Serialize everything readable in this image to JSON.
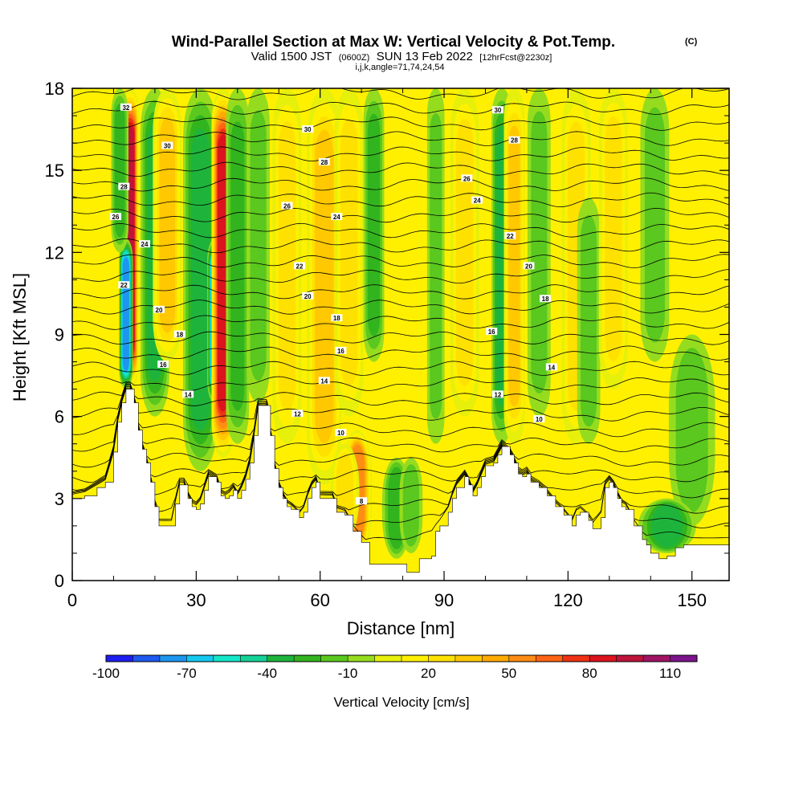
{
  "chart_data": {
    "type": "heatmap",
    "title": "Wind-Parallel Section at Max W: Vertical Velocity & Pot.Temp.",
    "title_mark": "(C)",
    "subtitle_parts": [
      "Valid 1500 JST",
      "(0600Z)",
      "SUN 13 Feb 2022",
      "[12hrFcst@2230z]"
    ],
    "subtitle2": "i,j,k,angle=71,74,24,54",
    "xlabel": "Distance [nm]",
    "ylabel": "Height [Kft MSL]",
    "xlim": [
      0,
      159
    ],
    "ylim": [
      0,
      18
    ],
    "x_ticks": [
      "0",
      "30",
      "60",
      "90",
      "120",
      "150"
    ],
    "y_ticks": [
      "0",
      "3",
      "6",
      "9",
      "12",
      "15",
      "18"
    ],
    "x_tick_values": [
      0,
      30,
      60,
      90,
      120,
      150
    ],
    "y_tick_values": [
      0,
      3,
      6,
      9,
      12,
      15,
      18
    ],
    "colorbar": {
      "title": "Vertical Velocity [cm/s]",
      "tick_labels": [
        "-100",
        "-70",
        "-40",
        "-10",
        "20",
        "50",
        "80",
        "110"
      ],
      "levels": [
        -100,
        -90,
        -80,
        -70,
        -60,
        -50,
        -40,
        -30,
        -20,
        -10,
        0,
        10,
        20,
        30,
        40,
        50,
        60,
        70,
        80,
        90,
        100,
        110
      ],
      "colors": [
        "#1e1ef0",
        "#1e5af0",
        "#1e96f0",
        "#14c8f0",
        "#14e6c8",
        "#14d296",
        "#1eb43c",
        "#32b41e",
        "#5ac81e",
        "#96dc1e",
        "#e6f00a",
        "#fff000",
        "#ffe100",
        "#ffc800",
        "#ffaa00",
        "#ff8c14",
        "#ff6414",
        "#f03214",
        "#dc141e",
        "#be143c",
        "#a01464",
        "#7d148c"
      ]
    },
    "background_color": "#fff000",
    "terrain_color": "#ffffff",
    "terrain": [
      [
        0,
        3.0
      ],
      [
        3,
        3.1
      ],
      [
        6,
        3.4
      ],
      [
        8,
        3.6
      ],
      [
        10,
        4.7
      ],
      [
        11,
        5.8
      ],
      [
        12,
        6.5
      ],
      [
        13,
        7.0
      ],
      [
        14,
        7.0
      ],
      [
        15,
        6.5
      ],
      [
        16,
        5.5
      ],
      [
        17,
        4.8
      ],
      [
        18,
        4.3
      ],
      [
        19,
        3.6
      ],
      [
        20,
        2.7
      ],
      [
        21,
        2.0
      ],
      [
        24,
        2.0
      ],
      [
        25,
        2.8
      ],
      [
        26,
        3.5
      ],
      [
        27,
        3.5
      ],
      [
        28,
        3.0
      ],
      [
        29,
        2.7
      ],
      [
        30,
        2.6
      ],
      [
        31,
        2.8
      ],
      [
        32,
        3.3
      ],
      [
        33,
        3.8
      ],
      [
        35,
        3.6
      ],
      [
        36,
        3.1
      ],
      [
        37,
        3.0
      ],
      [
        38,
        3.1
      ],
      [
        39,
        3.3
      ],
      [
        40,
        3.0
      ],
      [
        41,
        3.3
      ],
      [
        42,
        3.7
      ],
      [
        43,
        4.3
      ],
      [
        44,
        5.3
      ],
      [
        45,
        6.4
      ],
      [
        47,
        6.4
      ],
      [
        48,
        5.3
      ],
      [
        49,
        4.1
      ],
      [
        50,
        3.4
      ],
      [
        51,
        3.0
      ],
      [
        52,
        2.7
      ],
      [
        53,
        2.6
      ],
      [
        55,
        2.3
      ],
      [
        56,
        2.5
      ],
      [
        57,
        3.0
      ],
      [
        58,
        3.4
      ],
      [
        59,
        3.6
      ],
      [
        60,
        3.0
      ],
      [
        63,
        3.0
      ],
      [
        64,
        2.5
      ],
      [
        66,
        2.4
      ],
      [
        68,
        1.8
      ],
      [
        70,
        1.4
      ],
      [
        72,
        0.6
      ],
      [
        80,
        0.6
      ],
      [
        81,
        0.3
      ],
      [
        83,
        0.3
      ],
      [
        84,
        0.8
      ],
      [
        87,
        0.9
      ],
      [
        88,
        1.8
      ],
      [
        89,
        2.0
      ],
      [
        91,
        2.5
      ],
      [
        92,
        3.0
      ],
      [
        93,
        3.4
      ],
      [
        95,
        3.8
      ],
      [
        96,
        3.5
      ],
      [
        97,
        3.1
      ],
      [
        98,
        3.4
      ],
      [
        99,
        3.8
      ],
      [
        100,
        4.2
      ],
      [
        102,
        4.3
      ],
      [
        103,
        4.6
      ],
      [
        104,
        4.9
      ],
      [
        106,
        4.6
      ],
      [
        107,
        4.3
      ],
      [
        108,
        3.9
      ],
      [
        109,
        3.8
      ],
      [
        110,
        3.9
      ],
      [
        111,
        3.6
      ],
      [
        113,
        3.4
      ],
      [
        115,
        3.1
      ],
      [
        117,
        2.7
      ],
      [
        119,
        2.4
      ],
      [
        121,
        2.0
      ],
      [
        122,
        2.4
      ],
      [
        123,
        2.5
      ],
      [
        125,
        2.2
      ],
      [
        126,
        1.9
      ],
      [
        128,
        2.3
      ],
      [
        129,
        3.4
      ],
      [
        130,
        3.6
      ],
      [
        131,
        3.4
      ],
      [
        132,
        3.0
      ],
      [
        133,
        2.7
      ],
      [
        134,
        2.6
      ],
      [
        136,
        2.0
      ],
      [
        138,
        1.5
      ],
      [
        139,
        1.3
      ],
      [
        140,
        1.0
      ],
      [
        142,
        0.8
      ],
      [
        144,
        0.9
      ],
      [
        146,
        1.2
      ],
      [
        148,
        1.3
      ],
      [
        159,
        1.3
      ]
    ],
    "velocity_features": [
      {
        "x": 14,
        "width": 1.5,
        "y_min": 7,
        "y_max": 18,
        "w": 100
      },
      {
        "x": 13,
        "width": 1.2,
        "y_min": 7,
        "y_max": 12.5,
        "w": -75
      },
      {
        "x": 11.5,
        "width": 1.5,
        "y_min": 12,
        "y_max": 18,
        "w": -30
      },
      {
        "x": 20,
        "width": 2.5,
        "y_min": 6,
        "y_max": 18,
        "w": -35
      },
      {
        "x": 23,
        "width": 2.5,
        "y_min": 8,
        "y_max": 18,
        "w": 35
      },
      {
        "x": 31,
        "width": 3.0,
        "y_min": 4,
        "y_max": 18,
        "w": -40
      },
      {
        "x": 34.5,
        "width": 1.3,
        "y_min": 6.5,
        "y_max": 12.5,
        "w": -75
      },
      {
        "x": 36.5,
        "width": 2.0,
        "y_min": 4.5,
        "y_max": 18,
        "w": 85
      },
      {
        "x": 40,
        "width": 2.0,
        "y_min": 5,
        "y_max": 18,
        "w": -25
      },
      {
        "x": 45,
        "width": 2.0,
        "y_min": 6.5,
        "y_max": 18,
        "w": -20
      },
      {
        "x": 52,
        "width": 2.5,
        "y_min": 5,
        "y_max": 18,
        "w": 30
      },
      {
        "x": 61,
        "width": 3.0,
        "y_min": 3.5,
        "y_max": 18,
        "w": 35
      },
      {
        "x": 67,
        "width": 2.5,
        "y_min": 6,
        "y_max": 18,
        "w": 25
      },
      {
        "x": 69,
        "width": 2.5,
        "y_min": 1,
        "y_max": 5.5,
        "w": 60
      },
      {
        "x": 66,
        "width": 2.5,
        "y_min": 1.5,
        "y_max": 5,
        "w": 30
      },
      {
        "x": 73,
        "width": 1.8,
        "y_min": 8,
        "y_max": 18,
        "w": -25
      },
      {
        "x": 78.5,
        "width": 2.5,
        "y_min": 0.8,
        "y_max": 4.5,
        "w": -30
      },
      {
        "x": 82,
        "width": 2.0,
        "y_min": 1,
        "y_max": 4.5,
        "w": -20
      },
      {
        "x": 88,
        "width": 1.5,
        "y_min": 5,
        "y_max": 18,
        "w": -15
      },
      {
        "x": 95,
        "width": 2.5,
        "y_min": 6,
        "y_max": 18,
        "w": 25
      },
      {
        "x": 104,
        "width": 1.8,
        "y_min": 5,
        "y_max": 18,
        "w": -40
      },
      {
        "x": 107,
        "width": 1.8,
        "y_min": 5,
        "y_max": 18,
        "w": 40
      },
      {
        "x": 113,
        "width": 2.0,
        "y_min": 6,
        "y_max": 18,
        "w": -15
      },
      {
        "x": 122,
        "width": 2.5,
        "y_min": 5,
        "y_max": 18,
        "w": 30
      },
      {
        "x": 125,
        "width": 2.0,
        "y_min": 5,
        "y_max": 14,
        "w": -20
      },
      {
        "x": 131,
        "width": 2.5,
        "y_min": 7,
        "y_max": 18,
        "w": 25
      },
      {
        "x": 141,
        "width": 2.5,
        "y_min": 8,
        "y_max": 18,
        "w": -20
      },
      {
        "x": 150,
        "width": 4.0,
        "y_min": 2,
        "y_max": 9,
        "w": -20
      },
      {
        "x": 144,
        "width": 5.0,
        "y_min": 1,
        "y_max": 3,
        "w": -35
      }
    ],
    "pot_temp_contour_levels": [
      4,
      6,
      8,
      10,
      12,
      14,
      16,
      18,
      20,
      22,
      24,
      26,
      28,
      30,
      32
    ],
    "pot_temp_labels": [
      {
        "text": "32",
        "x": 13,
        "y": 17.3
      },
      {
        "text": "30",
        "x": 23,
        "y": 15.9
      },
      {
        "text": "28",
        "x": 12.5,
        "y": 14.4
      },
      {
        "text": "26",
        "x": 10.5,
        "y": 13.3
      },
      {
        "text": "24",
        "x": 17.5,
        "y": 12.3
      },
      {
        "text": "22",
        "x": 12.5,
        "y": 10.8
      },
      {
        "text": "20",
        "x": 21,
        "y": 9.9
      },
      {
        "text": "18",
        "x": 26,
        "y": 9.0
      },
      {
        "text": "16",
        "x": 22,
        "y": 7.9
      },
      {
        "text": "14",
        "x": 28,
        "y": 6.8
      },
      {
        "text": "30",
        "x": 57,
        "y": 16.5
      },
      {
        "text": "28",
        "x": 61,
        "y": 15.3
      },
      {
        "text": "26",
        "x": 52,
        "y": 13.7
      },
      {
        "text": "24",
        "x": 64,
        "y": 13.3
      },
      {
        "text": "22",
        "x": 55,
        "y": 11.5
      },
      {
        "text": "20",
        "x": 57,
        "y": 10.4
      },
      {
        "text": "18",
        "x": 64,
        "y": 9.6
      },
      {
        "text": "16",
        "x": 65,
        "y": 8.4
      },
      {
        "text": "14",
        "x": 61,
        "y": 7.3
      },
      {
        "text": "12",
        "x": 54.5,
        "y": 6.1
      },
      {
        "text": "10",
        "x": 65,
        "y": 5.4
      },
      {
        "text": "8",
        "x": 70,
        "y": 2.9
      },
      {
        "text": "30",
        "x": 103,
        "y": 17.2
      },
      {
        "text": "28",
        "x": 107,
        "y": 16.1
      },
      {
        "text": "26",
        "x": 95.5,
        "y": 14.7
      },
      {
        "text": "24",
        "x": 98,
        "y": 13.9
      },
      {
        "text": "22",
        "x": 106,
        "y": 12.6
      },
      {
        "text": "20",
        "x": 110.5,
        "y": 11.5
      },
      {
        "text": "18",
        "x": 114.5,
        "y": 10.3
      },
      {
        "text": "16",
        "x": 101.5,
        "y": 9.1
      },
      {
        "text": "14",
        "x": 116,
        "y": 7.8
      },
      {
        "text": "12",
        "x": 103,
        "y": 6.8
      },
      {
        "text": "10",
        "x": 113,
        "y": 5.9
      }
    ]
  }
}
